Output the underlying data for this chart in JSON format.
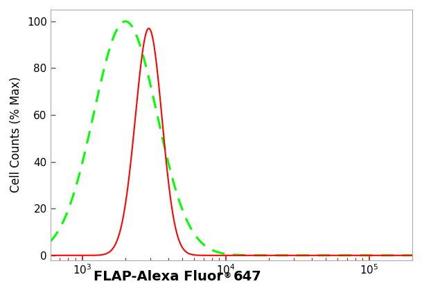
{
  "xlabel_main": "FLAP-Alexa Fluor",
  "xlabel_super": "®",
  "xlabel_end": "647",
  "ylabel": "Cell Counts (% Max)",
  "xlim": [
    600,
    200000
  ],
  "ylim": [
    -2,
    105
  ],
  "yticks": [
    0,
    20,
    40,
    60,
    80,
    100
  ],
  "green_peak": 2000,
  "green_sigma": 0.22,
  "green_height": 100,
  "red_peak1": 2700,
  "red_peak2": 3100,
  "red_sigma1": 0.09,
  "red_sigma2": 0.085,
  "red_height1": 90,
  "red_height2": 97,
  "background_color": "#ffffff",
  "plot_bg_color": "#ffffff",
  "green_color": "#00ff00",
  "red_color": "#ff0000",
  "tick_color": "#cc0000",
  "spine_color": "#aaaaaa",
  "fig_width": 6.09,
  "fig_height": 4.13,
  "dpi": 100
}
